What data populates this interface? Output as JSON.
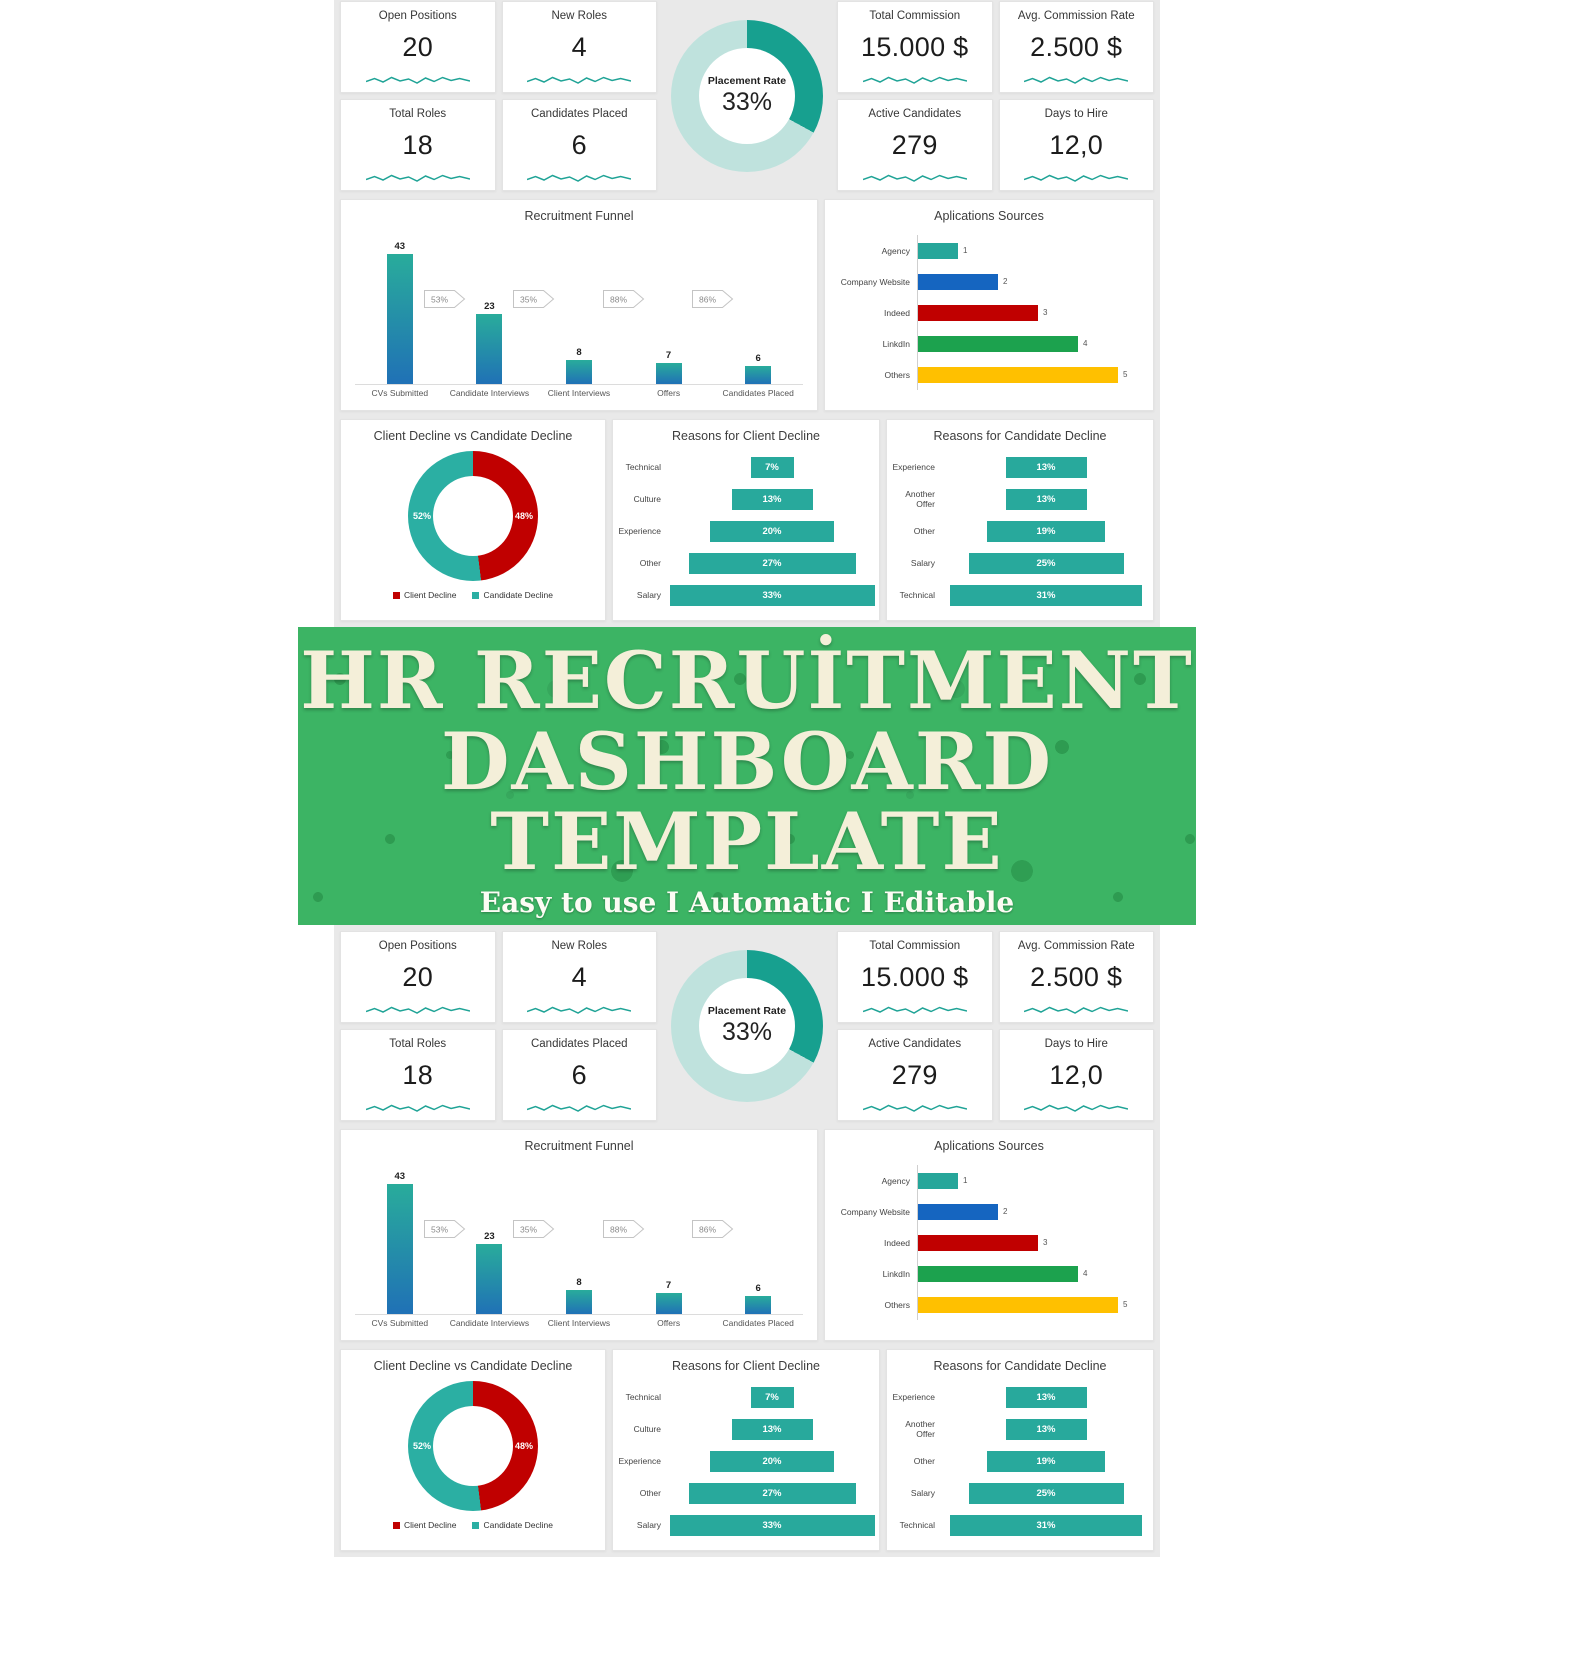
{
  "page": {
    "background_color": "#ffffff",
    "dashboard_backdrop_color": "#e9e9e9"
  },
  "banner": {
    "line1": "HR RECRUİTMENT",
    "line2": "DASHBOARD",
    "line3": "TEMPLATE",
    "tagline": "Easy to use I Automatic I Editable",
    "background_color": "#3cb464",
    "speckle_color": "#2e9b51",
    "text_color": "#f4efd9"
  },
  "dashboard": {
    "accent_color": "#1fa396",
    "kpis": [
      {
        "id": "open-positions",
        "label": "Open Positions",
        "value": "20",
        "row": 1,
        "col": 1
      },
      {
        "id": "new-roles",
        "label": "New Roles",
        "value": "4",
        "row": 1,
        "col": 2
      },
      {
        "id": "total-commission",
        "label": "Total Commission",
        "value": "15.000 $",
        "row": 1,
        "col": 4
      },
      {
        "id": "avg-commission-rate",
        "label": "Avg. Commission Rate",
        "value": "2.500 $",
        "row": 1,
        "col": 5
      },
      {
        "id": "total-roles",
        "label": "Total Roles",
        "value": "18",
        "row": 2,
        "col": 1
      },
      {
        "id": "candidates-placed",
        "label": "Candidates Placed",
        "value": "6",
        "row": 2,
        "col": 2
      },
      {
        "id": "active-candidates",
        "label": "Active Candidates",
        "value": "279",
        "row": 2,
        "col": 4
      },
      {
        "id": "days-to-hire",
        "label": "Days to Hire",
        "value": "12,0",
        "row": 2,
        "col": 5
      }
    ]
  },
  "chart_data": [
    {
      "id": "placement_rate",
      "type": "pie",
      "title": "Placement Rate",
      "center_label": "33%",
      "slices": [
        {
          "label": "Placement Rate",
          "value": 33,
          "color": "#17a08f"
        },
        {
          "label": "Remaining",
          "value": 67,
          "color": "#bfe2dd"
        }
      ]
    },
    {
      "id": "recruitment_funnel",
      "type": "bar",
      "title": "Recruitment Funnel",
      "categories": [
        "CVs Submitted",
        "Candidate Interviews",
        "Client Interviews",
        "Offers",
        "Candidates Placed"
      ],
      "values": [
        43,
        23,
        8,
        7,
        6
      ],
      "conversion_labels": [
        "53%",
        "35%",
        "88%",
        "86%"
      ],
      "ylim": [
        0,
        45
      ],
      "bar_color_top": "#29ac9b",
      "bar_color_bottom": "#2071b6"
    },
    {
      "id": "application_sources",
      "type": "bar",
      "orientation": "horizontal",
      "title": "Aplications Sources",
      "categories": [
        "Agency",
        "Company Website",
        "Indeed",
        "LinkdIn",
        "Others"
      ],
      "values": [
        1,
        2,
        3,
        4,
        5
      ],
      "colors": [
        "#26a69a",
        "#1565c0",
        "#c00000",
        "#1ca24e",
        "#ffc000"
      ],
      "xlim": [
        0,
        5
      ]
    },
    {
      "id": "decline_comparison",
      "type": "pie",
      "title": "Client Decline vs Candidate Decline",
      "legend_position": "bottom",
      "slices": [
        {
          "label": "Client Decline",
          "value": 48,
          "pct_label": "48%",
          "color": "#c00000"
        },
        {
          "label": "Candidate Decline",
          "value": 52,
          "pct_label": "52%",
          "color": "#2bafa3"
        }
      ]
    },
    {
      "id": "client_decline_reasons",
      "type": "funnel",
      "title": "Reasons for Client Decline",
      "categories": [
        "Technical",
        "Culture",
        "Experience",
        "Other",
        "Salary"
      ],
      "values": [
        7,
        13,
        20,
        27,
        33
      ],
      "labels": [
        "7%",
        "13%",
        "20%",
        "27%",
        "33%"
      ],
      "bar_color": "#28a99c"
    },
    {
      "id": "candidate_decline_reasons",
      "type": "funnel",
      "title": "Reasons for Candidate Decline",
      "categories": [
        "Experience",
        "Another Offer",
        "Other",
        "Salary",
        "Technical"
      ],
      "values": [
        13,
        13,
        19,
        25,
        31
      ],
      "labels": [
        "13%",
        "13%",
        "19%",
        "25%",
        "31%"
      ],
      "bar_color": "#28a99c"
    }
  ]
}
